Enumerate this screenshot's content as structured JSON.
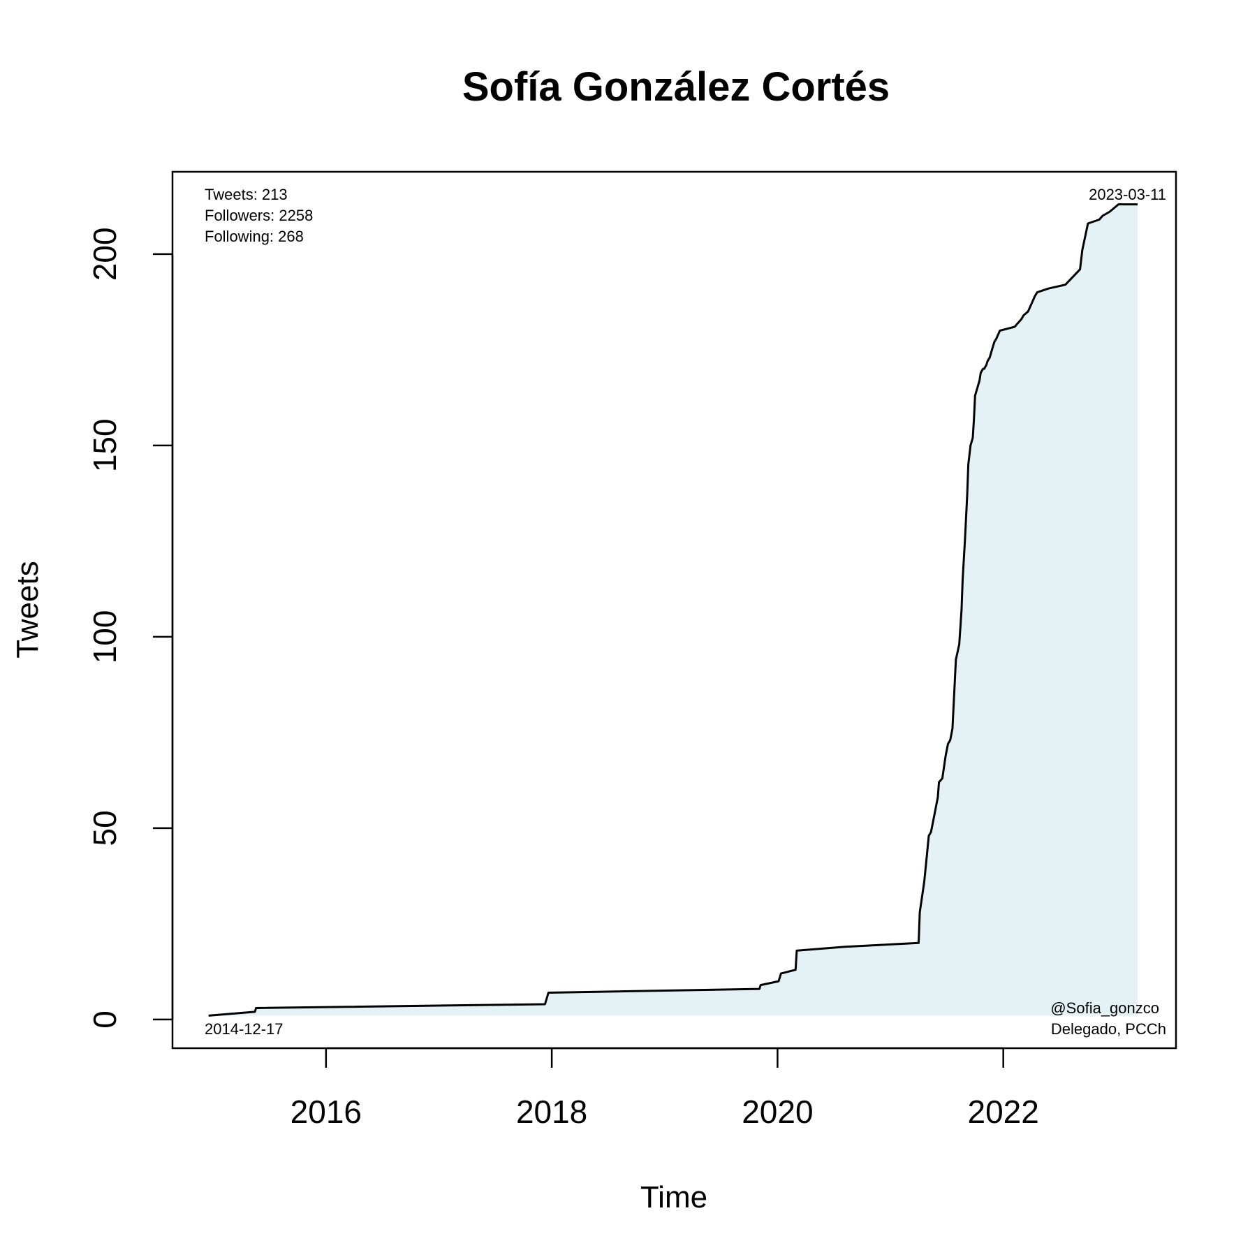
{
  "chart_data": {
    "type": "line",
    "title": "Sofía González Cortés",
    "xlabel": "Time",
    "ylabel": "Tweets",
    "x_ticks": [
      "2016",
      "2018",
      "2020",
      "2022"
    ],
    "y_ticks": [
      0,
      50,
      100,
      150,
      200
    ],
    "xlim": [
      2014.64,
      2023.53
    ],
    "ylim": [
      -7.5,
      221.5
    ],
    "grid": false,
    "fill_color": "#e4f2f5",
    "line_color": "#000000",
    "stats": {
      "tweets": "Tweets: 213",
      "followers": "Followers: 2258",
      "following": "Following: 268"
    },
    "start_date": "2014-12-17",
    "end_date": "2023-03-11",
    "handle": "@Sofia_gonzco",
    "role": "Delegado, PCCh",
    "series": [
      {
        "x": [
          2014.96,
          2015.37,
          2015.38,
          2017.94,
          2017.96,
          2017.97,
          2019.84,
          2019.85,
          2020.01,
          2020.03,
          2020.16,
          2020.17,
          2020.6,
          2021.25,
          2021.26,
          2021.28,
          2021.3,
          2021.32,
          2021.34,
          2021.36,
          2021.42,
          2021.43,
          2021.46,
          2021.49,
          2021.51,
          2021.53,
          2021.55,
          2021.58,
          2021.61,
          2021.63,
          2021.64,
          2021.66,
          2021.68,
          2021.69,
          2021.71,
          2021.73,
          2021.74,
          2021.75,
          2021.76,
          2021.78,
          2021.79,
          2021.8,
          2021.82,
          2021.83,
          2021.85,
          2021.86,
          2021.88,
          2021.9,
          2021.92,
          2021.94,
          2021.97,
          2022.1,
          2022.16,
          2022.18,
          2022.22,
          2022.28,
          2022.3,
          2022.4,
          2022.55,
          2022.68,
          2022.7,
          2022.75,
          2022.85,
          2022.88,
          2022.94,
          2022.98,
          2023.02,
          2023.06,
          2023.08,
          2023.1,
          2023.13,
          2023.19
        ],
        "y": [
          1,
          2,
          3,
          4,
          6,
          7,
          8,
          9,
          10,
          12,
          13,
          18,
          19,
          20,
          28,
          32,
          36,
          42,
          48,
          49,
          58,
          62,
          63,
          69,
          72,
          73,
          76,
          94,
          98,
          107,
          115,
          125,
          137,
          145,
          150,
          152,
          157,
          163,
          164,
          166,
          167,
          169,
          170,
          170,
          171,
          172,
          173,
          175,
          177,
          178,
          180,
          181,
          183,
          184,
          185,
          189,
          190,
          191,
          192,
          196,
          201,
          208,
          209,
          210,
          211,
          212,
          213,
          213,
          213,
          213,
          213,
          213
        ]
      }
    ]
  }
}
